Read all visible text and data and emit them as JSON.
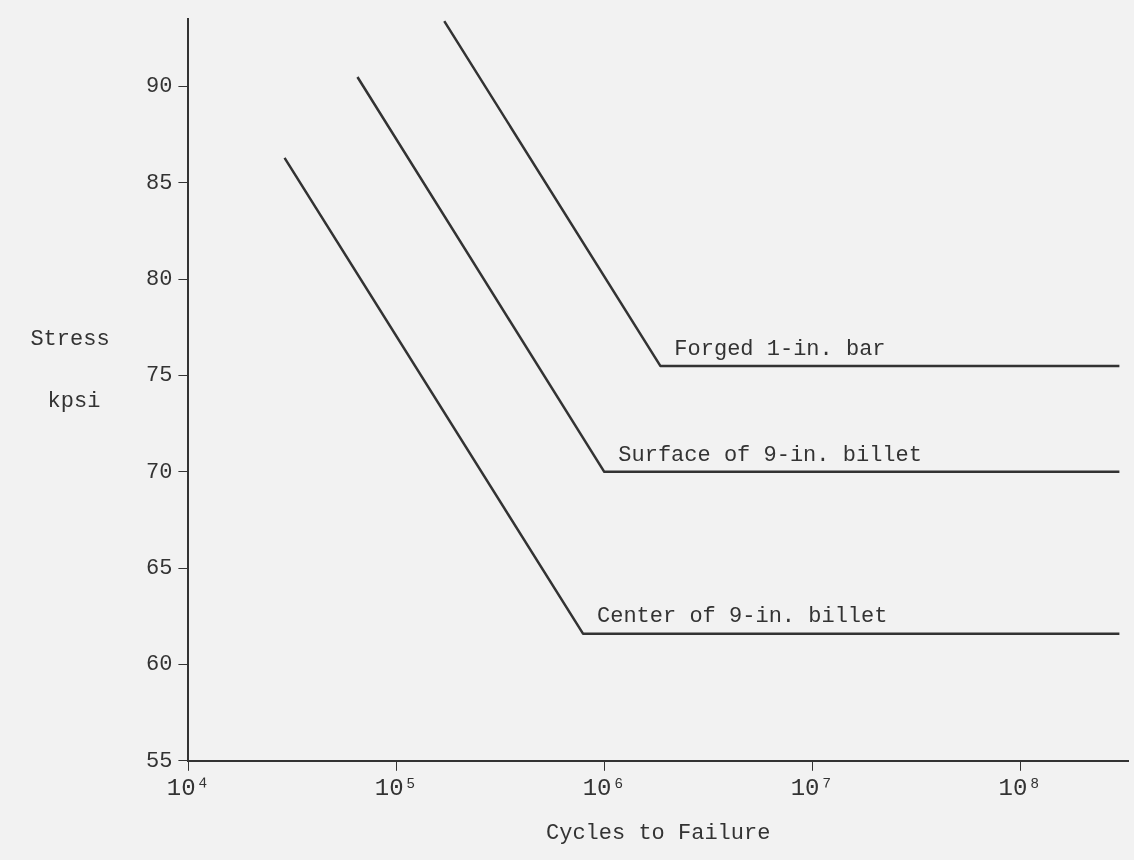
{
  "chart_data": {
    "type": "line",
    "xlabel": "Cycles to Failure",
    "ylabel": "Stress kpsi",
    "log": "x",
    "grid": false,
    "legend": false,
    "marker": "none",
    "line_style": "solid",
    "xlim": [
      10000,
      330000000
    ],
    "xticks": [
      {
        "value": 10000,
        "label": "10⁴"
      },
      {
        "value": 100000,
        "label": "10⁵"
      },
      {
        "value": 1000000,
        "label": "10⁶"
      },
      {
        "value": 10000000,
        "label": "10⁷"
      },
      {
        "value": 100000000,
        "label": "10⁸"
      }
    ],
    "ylim": [
      55,
      93.5
    ],
    "yticks": [
      55,
      60,
      65,
      70,
      75,
      80,
      85,
      90
    ],
    "series": [
      {
        "name": "Forged 1-in. bar",
        "color": "#333333",
        "x": [
          170000,
          1860000,
          300000000
        ],
        "values": [
          93.4,
          75.5,
          75.5
        ]
      },
      {
        "name": "Surface of 9-in. billet",
        "color": "#333333",
        "x": [
          65000,
          1000000,
          300000000
        ],
        "values": [
          90.5,
          70,
          70
        ]
      },
      {
        "name": "Center of 9-in. billet",
        "color": "#333333",
        "x": [
          29000,
          790000,
          300000000
        ],
        "values": [
          86.3,
          61.6,
          61.6
        ]
      }
    ]
  }
}
